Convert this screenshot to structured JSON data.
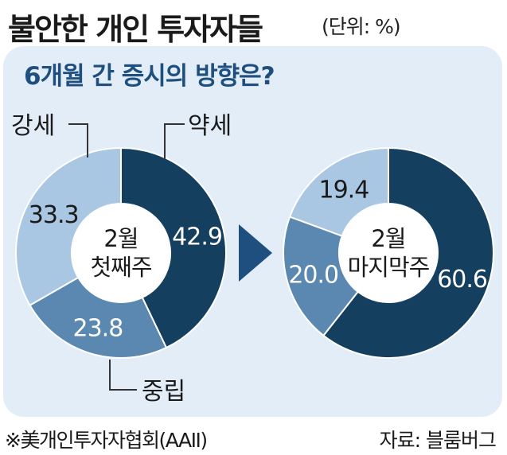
{
  "title": "불안한 개인 투자자들",
  "unit": "(단위: %)",
  "question": "6개월 간 증시의 방향은?",
  "chart_data": [
    {
      "type": "pie",
      "center_label": [
        "2월",
        "첫째주"
      ],
      "slices": [
        {
          "name": "약세",
          "value": 42.9,
          "label": "42.9",
          "color": "#153f5f"
        },
        {
          "name": "중립",
          "value": 23.8,
          "label": "23.8",
          "color": "#5b88b0"
        },
        {
          "name": "강세",
          "value": 33.3,
          "label": "33.3",
          "color": "#a9c6e2"
        }
      ]
    },
    {
      "type": "pie",
      "center_label": [
        "2월",
        "마지막주"
      ],
      "slices": [
        {
          "name": "약세",
          "value": 60.6,
          "label": "60.6",
          "color": "#153f5f"
        },
        {
          "name": "중립",
          "value": 20.0,
          "label": "20.0",
          "color": "#5b88b0"
        },
        {
          "name": "강세",
          "value": 19.4,
          "label": "19.4",
          "color": "#a9c6e2"
        }
      ]
    }
  ],
  "callouts": {
    "bearish": "약세",
    "bullish": "강세",
    "neutral": "중립"
  },
  "arrow_color": "#1f4f7e",
  "source": "※美개인투자자협회(AAII)",
  "credit": "자료: 블룸버그"
}
